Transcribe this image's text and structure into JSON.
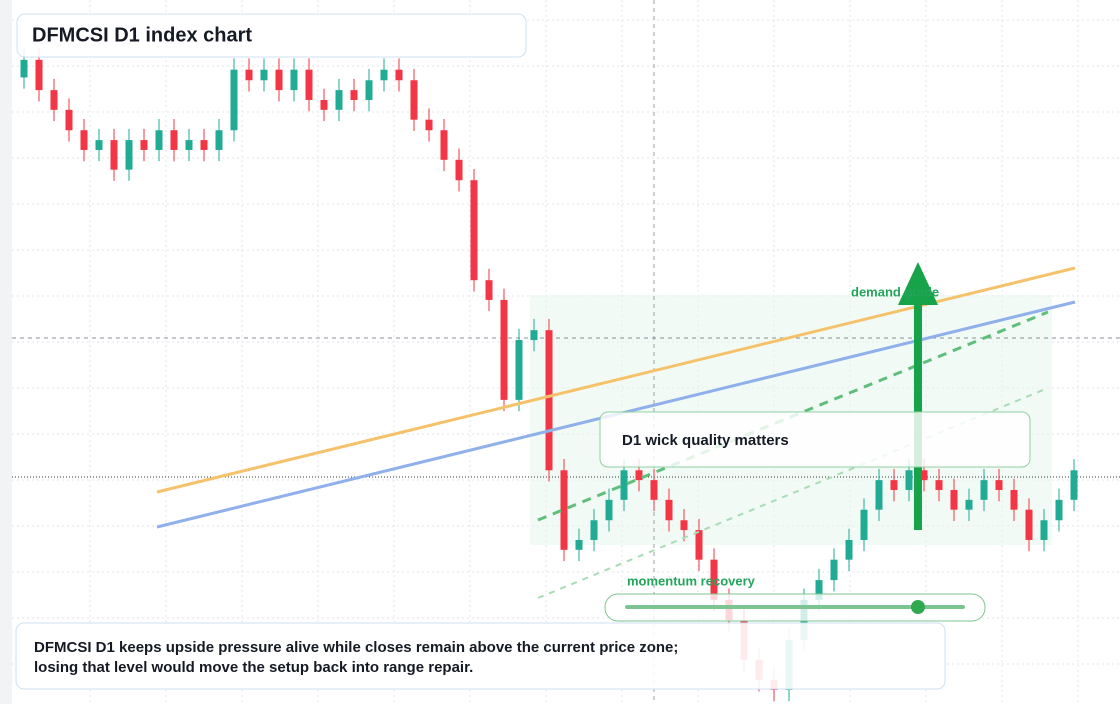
{
  "chart_data": {
    "type": "candlestick",
    "title": "DFMCSI D1 index chart",
    "annotations": {
      "demand": "demand guide",
      "wick": "D1 wick quality matters",
      "momentum": "momentum recovery"
    },
    "footer": [
      "DFMCSI D1 keeps upside pressure alive while closes remain above the current price zone;",
      "losing that level would move the setup back into range repair."
    ],
    "up_color": "#22ab94",
    "down_color": "#f23645",
    "ylim": [
      0,
      100
    ],
    "open": [
      89.0,
      91.5,
      87.2,
      84.4,
      81.5,
      78.7,
      80.1,
      75.9,
      80.1,
      78.7,
      81.5,
      78.7,
      80.1,
      78.7,
      81.5,
      90.1,
      88.6,
      90.1,
      87.2,
      90.1,
      85.8,
      84.4,
      87.2,
      85.8,
      88.6,
      90.1,
      88.6,
      83.0,
      81.5,
      77.3,
      74.4,
      60.2,
      57.4,
      43.2,
      51.7,
      53.1,
      33.2,
      21.9,
      23.3,
      26.1,
      29.0,
      33.2,
      31.8,
      29.0,
      26.1,
      24.7,
      20.5,
      14.8,
      11.9,
      6.3,
      3.4,
      2.0,
      9.1,
      14.8,
      17.6,
      20.5,
      23.3,
      27.6,
      31.8,
      30.4,
      33.2,
      31.8,
      30.4,
      27.6,
      29.0,
      31.8,
      30.4,
      27.6,
      23.3,
      26.1,
      29.0
    ],
    "high": [
      93.1,
      93.1,
      88.8,
      86.0,
      83.1,
      81.7,
      81.7,
      81.7,
      81.7,
      83.1,
      83.1,
      81.7,
      81.7,
      83.1,
      91.7,
      91.7,
      91.7,
      91.7,
      91.7,
      91.7,
      87.4,
      88.8,
      88.8,
      90.2,
      91.7,
      91.7,
      90.2,
      84.6,
      83.1,
      78.9,
      76.0,
      61.8,
      59.0,
      53.3,
      54.7,
      54.7,
      34.8,
      24.9,
      27.7,
      30.6,
      34.8,
      34.8,
      33.4,
      30.6,
      27.7,
      26.3,
      22.1,
      16.4,
      13.5,
      7.9,
      5.0,
      10.7,
      16.4,
      19.2,
      22.1,
      24.9,
      29.2,
      33.4,
      33.4,
      34.8,
      34.8,
      33.4,
      32.0,
      30.6,
      33.4,
      33.4,
      32.0,
      29.2,
      27.7,
      30.6,
      34.8
    ],
    "low": [
      87.4,
      85.6,
      82.8,
      79.9,
      77.1,
      77.1,
      74.3,
      74.3,
      77.1,
      77.1,
      77.1,
      77.1,
      77.1,
      77.1,
      79.9,
      87.0,
      87.0,
      85.6,
      85.6,
      84.2,
      82.8,
      82.8,
      84.2,
      84.2,
      87.0,
      87.0,
      81.4,
      79.9,
      75.7,
      72.8,
      58.6,
      55.8,
      41.6,
      41.6,
      50.1,
      31.6,
      20.3,
      20.3,
      21.7,
      24.5,
      27.4,
      30.2,
      27.4,
      24.5,
      23.1,
      18.9,
      13.2,
      10.3,
      4.7,
      1.8,
      0.4,
      0.4,
      7.5,
      13.2,
      16.0,
      18.9,
      21.7,
      26.0,
      28.8,
      28.8,
      30.2,
      28.8,
      26.0,
      26.0,
      27.4,
      28.8,
      26.0,
      21.7,
      21.7,
      24.5,
      27.4
    ],
    "close": [
      91.5,
      87.2,
      84.4,
      81.5,
      78.7,
      80.1,
      75.9,
      80.1,
      78.7,
      81.5,
      78.7,
      80.1,
      78.7,
      81.5,
      90.1,
      88.6,
      90.1,
      87.2,
      90.1,
      85.8,
      84.4,
      87.2,
      85.8,
      88.6,
      90.1,
      88.6,
      83.0,
      81.5,
      77.3,
      74.4,
      60.2,
      57.4,
      43.2,
      51.7,
      53.1,
      33.2,
      21.9,
      23.3,
      26.1,
      29.0,
      33.2,
      31.8,
      29.0,
      26.1,
      24.7,
      20.5,
      14.8,
      11.9,
      6.3,
      3.4,
      2.0,
      9.1,
      14.8,
      17.6,
      20.5,
      23.3,
      27.6,
      31.8,
      30.4,
      33.2,
      31.8,
      30.4,
      27.6,
      29.0,
      31.8,
      30.4,
      27.6,
      23.3,
      26.1,
      29.0,
      33.2
    ]
  }
}
